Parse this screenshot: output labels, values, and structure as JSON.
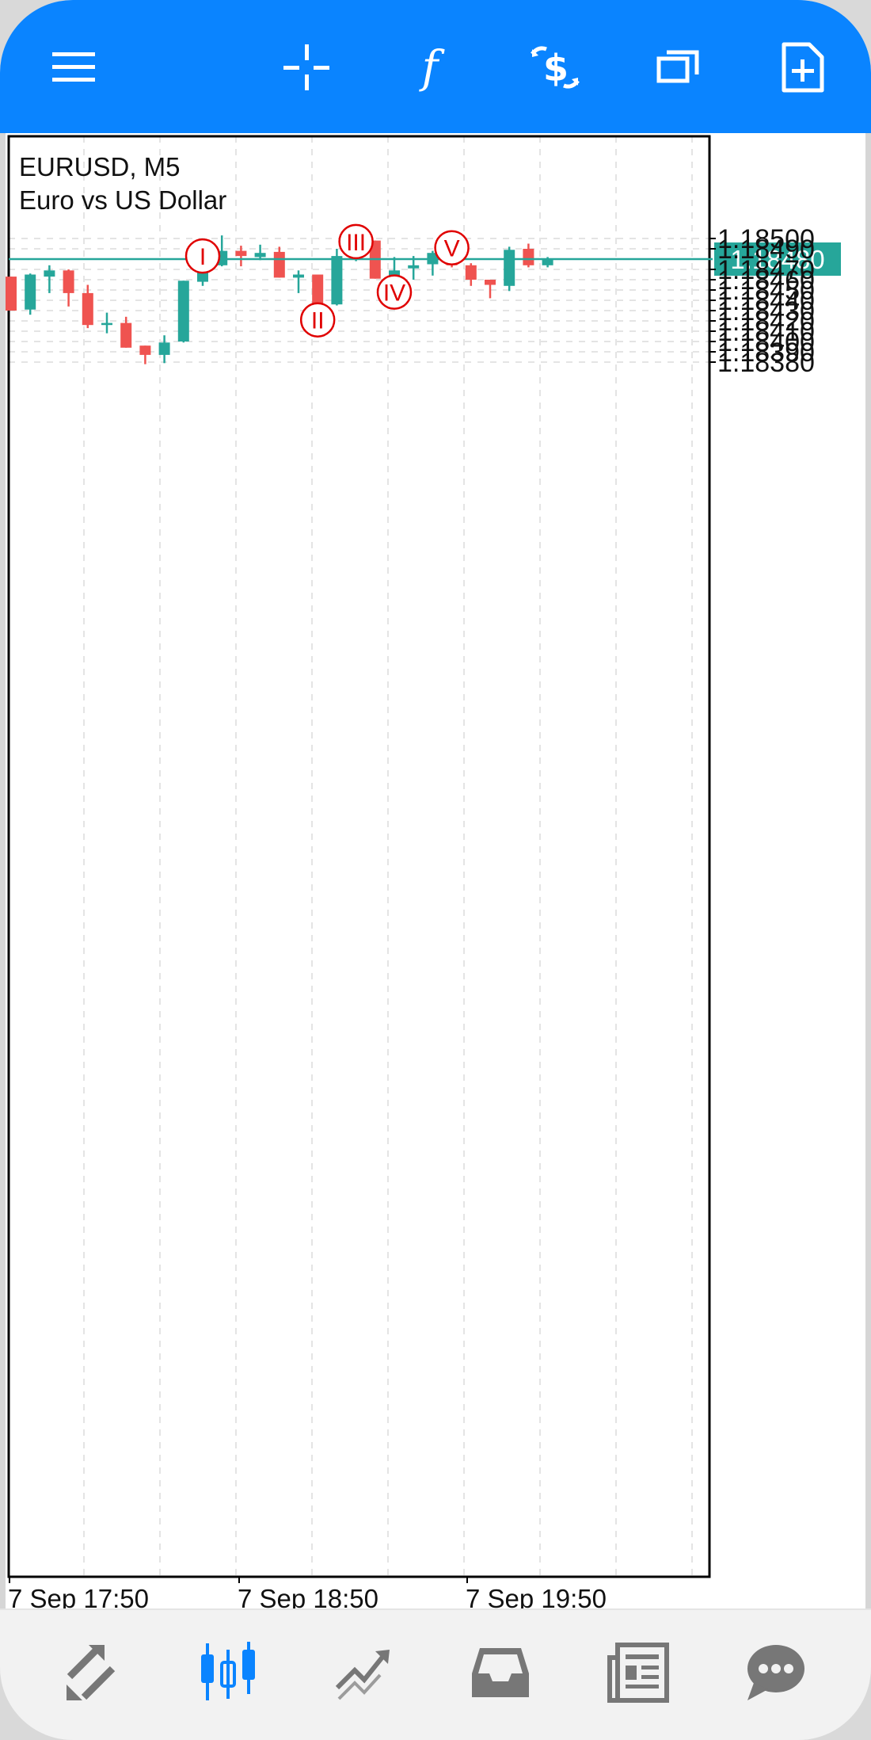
{
  "toolbar": {
    "icons": [
      "menu-icon",
      "crosshair-icon",
      "function-icon",
      "trade-icon",
      "windows-icon",
      "new-object-icon"
    ],
    "color": "#0a84ff"
  },
  "chart": {
    "symbol_line": "EURUSD, M5",
    "description": "Euro vs US Dollar",
    "current_price": "1.18480",
    "colors": {
      "bull": "#26a69a",
      "bear": "#ef5350",
      "price_line": "#26a69a",
      "wave_label": "#e00000"
    }
  },
  "chart_data": {
    "type": "candlestick",
    "symbol": "EURUSD",
    "timeframe": "M5",
    "ylim": [
      1.18368,
      1.18508
    ],
    "y_ticks": [
      "1.18500",
      "1.18490",
      "1.18480",
      "1.18470",
      "1.18460",
      "1.18450",
      "1.18440",
      "1.18430",
      "1.18420",
      "1.18410",
      "1.18400",
      "1.18390",
      "1.18380"
    ],
    "x_ticks": [
      "7 Sep 17:50",
      "7 Sep 18:50",
      "7 Sep 19:50"
    ],
    "grid": true,
    "current_price": 1.1848,
    "candles": [
      {
        "o": 1.18463,
        "h": 1.18463,
        "l": 1.1843,
        "c": 1.1843
      },
      {
        "o": 1.18431,
        "h": 1.18466,
        "l": 1.18426,
        "c": 1.18465
      },
      {
        "o": 1.18463,
        "h": 1.18474,
        "l": 1.18447,
        "c": 1.18469
      },
      {
        "o": 1.18469,
        "h": 1.1847,
        "l": 1.18434,
        "c": 1.18447
      },
      {
        "o": 1.18447,
        "h": 1.18455,
        "l": 1.18413,
        "c": 1.18416
      },
      {
        "o": 1.18416,
        "h": 1.18428,
        "l": 1.18408,
        "c": 1.18418
      },
      {
        "o": 1.18418,
        "h": 1.18424,
        "l": 1.18394,
        "c": 1.18394
      },
      {
        "o": 1.18396,
        "h": 1.18396,
        "l": 1.18378,
        "c": 1.18387
      },
      {
        "o": 1.18387,
        "h": 1.18406,
        "l": 1.18379,
        "c": 1.18399
      },
      {
        "o": 1.184,
        "h": 1.18459,
        "l": 1.18399,
        "c": 1.18459
      },
      {
        "o": 1.18458,
        "h": 1.18484,
        "l": 1.18454,
        "c": 1.18474
      },
      {
        "o": 1.18474,
        "h": 1.18503,
        "l": 1.18473,
        "c": 1.18488
      },
      {
        "o": 1.18488,
        "h": 1.18493,
        "l": 1.18473,
        "c": 1.18483
      },
      {
        "o": 1.18482,
        "h": 1.18494,
        "l": 1.18479,
        "c": 1.18486
      },
      {
        "o": 1.18487,
        "h": 1.18492,
        "l": 1.18462,
        "c": 1.18462
      },
      {
        "o": 1.18462,
        "h": 1.18469,
        "l": 1.18447,
        "c": 1.18465
      },
      {
        "o": 1.18465,
        "h": 1.18465,
        "l": 1.18424,
        "c": 1.18437
      },
      {
        "o": 1.18436,
        "h": 1.1849,
        "l": 1.18435,
        "c": 1.18483
      },
      {
        "o": 1.18484,
        "h": 1.18497,
        "l": 1.18478,
        "c": 1.18496
      },
      {
        "o": 1.18498,
        "h": 1.18498,
        "l": 1.18461,
        "c": 1.18461
      },
      {
        "o": 1.18462,
        "h": 1.18482,
        "l": 1.18448,
        "c": 1.18469
      },
      {
        "o": 1.18471,
        "h": 1.18483,
        "l": 1.1846,
        "c": 1.18474
      },
      {
        "o": 1.18475,
        "h": 1.18488,
        "l": 1.18464,
        "c": 1.18486
      },
      {
        "o": 1.18486,
        "h": 1.18491,
        "l": 1.18472,
        "c": 1.18474
      },
      {
        "o": 1.18474,
        "h": 1.18476,
        "l": 1.18454,
        "c": 1.1846
      },
      {
        "o": 1.1846,
        "h": 1.1846,
        "l": 1.18442,
        "c": 1.18455
      },
      {
        "o": 1.18454,
        "h": 1.18492,
        "l": 1.18449,
        "c": 1.18489
      },
      {
        "o": 1.1849,
        "h": 1.18495,
        "l": 1.18472,
        "c": 1.18474
      },
      {
        "o": 1.18474,
        "h": 1.18482,
        "l": 1.18472,
        "c": 1.1848
      }
    ],
    "annotations": [
      {
        "text": "I",
        "candle": 10,
        "price": 1.18483
      },
      {
        "text": "II",
        "candle": 16,
        "price": 1.18421
      },
      {
        "text": "III",
        "candle": 18,
        "price": 1.18497
      },
      {
        "text": "IV",
        "candle": 20,
        "price": 1.18448
      },
      {
        "text": "V",
        "candle": 23,
        "price": 1.18491
      }
    ]
  },
  "bottom_nav": {
    "icons": [
      "quotes-icon",
      "chart-icon",
      "trade-icon",
      "history-icon",
      "news-icon",
      "chat-icon"
    ],
    "active": "chart-icon",
    "active_color": "#0a84ff",
    "inactive_color": "#7a7a7a"
  }
}
